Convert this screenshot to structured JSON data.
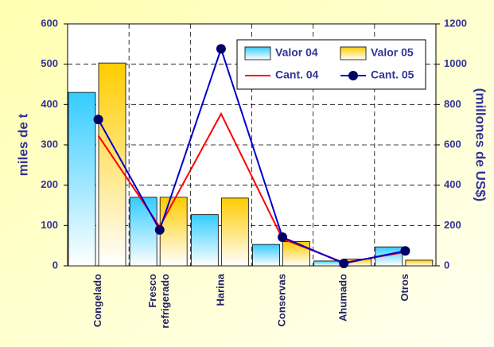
{
  "chart_data": {
    "type": "bar",
    "categories": [
      "Congelado",
      "Fresco refrigerado",
      "Harina",
      "Conservas",
      "Ahumado",
      "Otros"
    ],
    "series": [
      {
        "name": "Valor 04",
        "type": "bar",
        "axis": "y2",
        "color": "#33ccff",
        "values": [
          860,
          340,
          254,
          106,
          24,
          94
        ]
      },
      {
        "name": "Valor 05",
        "type": "bar",
        "axis": "y2",
        "color": "#ffcc00",
        "values": [
          1006,
          340,
          336,
          120,
          34,
          28
        ]
      },
      {
        "name": "Cant. 04",
        "type": "line",
        "color": "#ff0000",
        "values": [
          323,
          97,
          377,
          67,
          8,
          34
        ]
      },
      {
        "name": "Cant. 05",
        "type": "line",
        "color": "#0000cc",
        "marker_color": "#000066",
        "values": [
          363,
          89,
          538,
          71,
          6,
          37
        ]
      }
    ],
    "ylabel": "miles de t",
    "y2label": "(millones de US$)",
    "ylim": [
      0,
      600
    ],
    "yticks": [
      0,
      100,
      200,
      300,
      400,
      500,
      600
    ],
    "y2lim": [
      0,
      1200
    ],
    "y2ticks": [
      0,
      200,
      400,
      600,
      800,
      1000,
      1200
    ],
    "grid": true,
    "legend": "upper right"
  }
}
